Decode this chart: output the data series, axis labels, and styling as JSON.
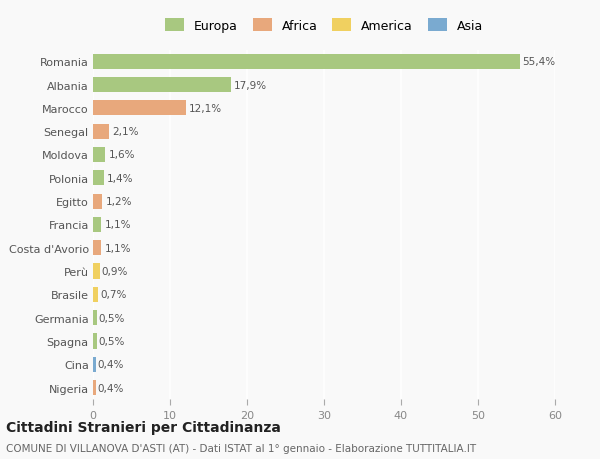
{
  "categories": [
    "Romania",
    "Albania",
    "Marocco",
    "Senegal",
    "Moldova",
    "Polonia",
    "Egitto",
    "Francia",
    "Costa d'Avorio",
    "Perù",
    "Brasile",
    "Germania",
    "Spagna",
    "Cina",
    "Nigeria"
  ],
  "values": [
    55.4,
    17.9,
    12.1,
    2.1,
    1.6,
    1.4,
    1.2,
    1.1,
    1.1,
    0.9,
    0.7,
    0.5,
    0.5,
    0.4,
    0.4
  ],
  "labels": [
    "55,4%",
    "17,9%",
    "12,1%",
    "2,1%",
    "1,6%",
    "1,4%",
    "1,2%",
    "1,1%",
    "1,1%",
    "0,9%",
    "0,7%",
    "0,5%",
    "0,5%",
    "0,4%",
    "0,4%"
  ],
  "bar_colors": [
    "#a8c880",
    "#a8c880",
    "#e8a87c",
    "#e8a87c",
    "#a8c880",
    "#a8c880",
    "#e8a87c",
    "#a8c880",
    "#e8a87c",
    "#f0d060",
    "#f0d060",
    "#a8c880",
    "#a8c880",
    "#7aaad0",
    "#e8a87c"
  ],
  "legend_labels": [
    "Europa",
    "Africa",
    "America",
    "Asia"
  ],
  "legend_colors": [
    "#a8c880",
    "#e8a87c",
    "#f0d060",
    "#7aaad0"
  ],
  "title": "Cittadini Stranieri per Cittadinanza",
  "subtitle": "COMUNE DI VILLANOVA D'ASTI (AT) - Dati ISTAT al 1° gennaio - Elaborazione TUTTITALIA.IT",
  "xlim": [
    0,
    60
  ],
  "xticks": [
    0,
    10,
    20,
    30,
    40,
    50,
    60
  ],
  "background_color": "#f9f9f9",
  "grid_color": "#ffffff",
  "bar_height": 0.65
}
